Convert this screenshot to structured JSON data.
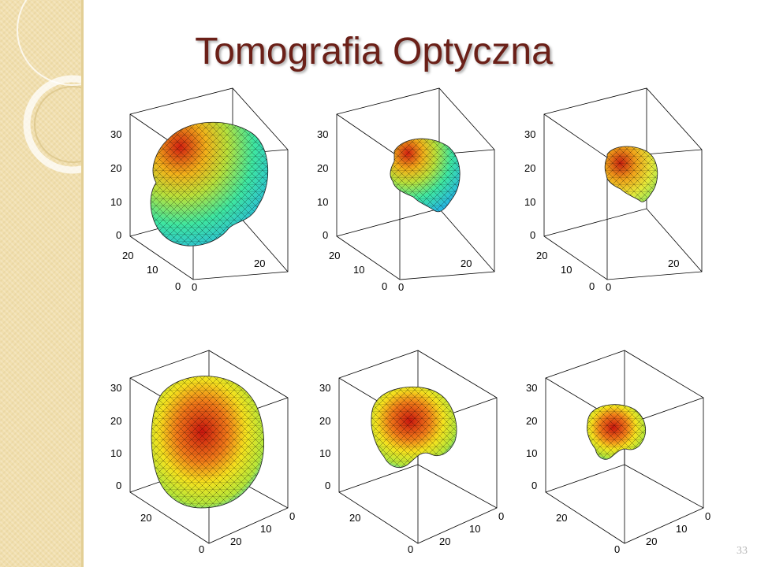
{
  "slide": {
    "title": "Tomografia Optyczna",
    "page_number": "33"
  },
  "panels": [
    {
      "id": "p1",
      "z_ticks": [
        "30",
        "20",
        "10",
        "0"
      ],
      "y_ticks": [
        "20",
        "10",
        "0"
      ],
      "x_ticks": [
        "0",
        "20"
      ]
    },
    {
      "id": "p2",
      "z_ticks": [
        "30",
        "20",
        "10",
        "0"
      ],
      "y_ticks": [
        "20",
        "10",
        "0"
      ],
      "x_ticks": [
        "0",
        "20"
      ]
    },
    {
      "id": "p3",
      "z_ticks": [
        "30",
        "20",
        "10",
        "0"
      ],
      "y_ticks": [
        "20",
        "10",
        "0"
      ],
      "x_ticks": [
        "0",
        "20"
      ]
    },
    {
      "id": "p4",
      "z_ticks": [
        "30",
        "20",
        "10",
        "0"
      ],
      "y_ticks": [
        "20",
        "0"
      ],
      "x_ticks": [
        "20",
        "10",
        "0"
      ]
    },
    {
      "id": "p5",
      "z_ticks": [
        "30",
        "20",
        "10",
        "0"
      ],
      "y_ticks": [
        "20",
        "0"
      ],
      "x_ticks": [
        "20",
        "10",
        "0"
      ]
    },
    {
      "id": "p6",
      "z_ticks": [
        "30",
        "20",
        "10",
        "0"
      ],
      "y_ticks": [
        "20",
        "0"
      ],
      "x_ticks": [
        "20",
        "10",
        "0"
      ]
    }
  ]
}
